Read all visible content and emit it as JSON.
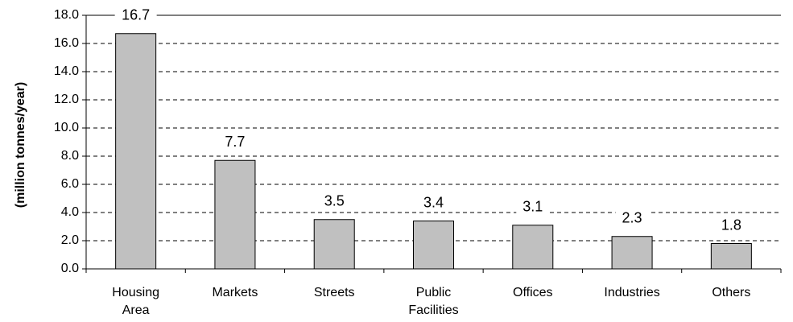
{
  "chart_data": {
    "type": "bar",
    "categories": [
      [
        "Housing",
        "Area"
      ],
      [
        "Markets"
      ],
      [
        "Streets"
      ],
      [
        "Public",
        "Facilities"
      ],
      [
        "Offices"
      ],
      [
        "Industries"
      ],
      [
        "Others"
      ]
    ],
    "values": [
      16.7,
      7.7,
      3.5,
      3.4,
      3.1,
      2.3,
      1.8
    ],
    "data_labels": [
      "16.7",
      "7.7",
      "3.5",
      "3.4",
      "3.1",
      "2.3",
      "1.8"
    ],
    "ylabel": "(million tonnes/year)",
    "ylim": [
      0,
      18
    ],
    "yticks": [
      "0.0",
      "2.0",
      "4.0",
      "6.0",
      "8.0",
      "10.0",
      "12.0",
      "14.0",
      "16.0",
      "18.0"
    ],
    "ytick_step": 2,
    "grid": "horizontal dashed",
    "legend": "none",
    "colors": {
      "bar_fill": "#c0c0c0",
      "bar_stroke": "#000000",
      "grid": "#000000"
    }
  }
}
